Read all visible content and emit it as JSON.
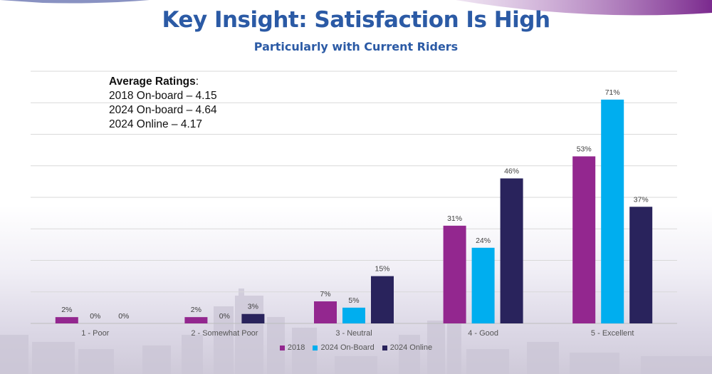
{
  "header": {
    "title": "Key Insight: Satisfaction Is High",
    "subtitle": "Particularly with Current Riders"
  },
  "ratings_box": {
    "heading": "Average Ratings",
    "heading_suffix": ":",
    "lines": [
      "2018 On-board – 4.15",
      "2024 On-board – 4.64",
      "2024 Online – 4.17"
    ]
  },
  "colors": {
    "title": "#2b5aa5",
    "swoosh": "#7b2a8e"
  },
  "chart_data": {
    "type": "bar",
    "title": "Key Insight: Satisfaction Is High",
    "subtitle": "Particularly with Current Riders",
    "categories": [
      "1 - Poor",
      "2 - Somewhat Poor",
      "3 - Neutral",
      "4 - Good",
      "5 - Excellent"
    ],
    "series": [
      {
        "name": "2018",
        "color": "#93278f",
        "values": [
          2,
          2,
          7,
          31,
          53
        ],
        "labels": [
          "2%",
          "2%",
          "7%",
          "31%",
          "53%"
        ]
      },
      {
        "name": "2024 On-Board",
        "color": "#00aeef",
        "values": [
          0,
          0,
          5,
          24,
          71
        ],
        "labels": [
          "0%",
          "0%",
          "5%",
          "24%",
          "71%"
        ]
      },
      {
        "name": "2024 Online",
        "color": "#29235c",
        "values": [
          0,
          3,
          15,
          46,
          37
        ],
        "labels": [
          "0%",
          "3%",
          "15%",
          "46%",
          "37%"
        ]
      }
    ],
    "ylim": [
      0,
      80
    ],
    "xlabel": "",
    "ylabel": "",
    "grid": true,
    "legend_position": "bottom"
  }
}
